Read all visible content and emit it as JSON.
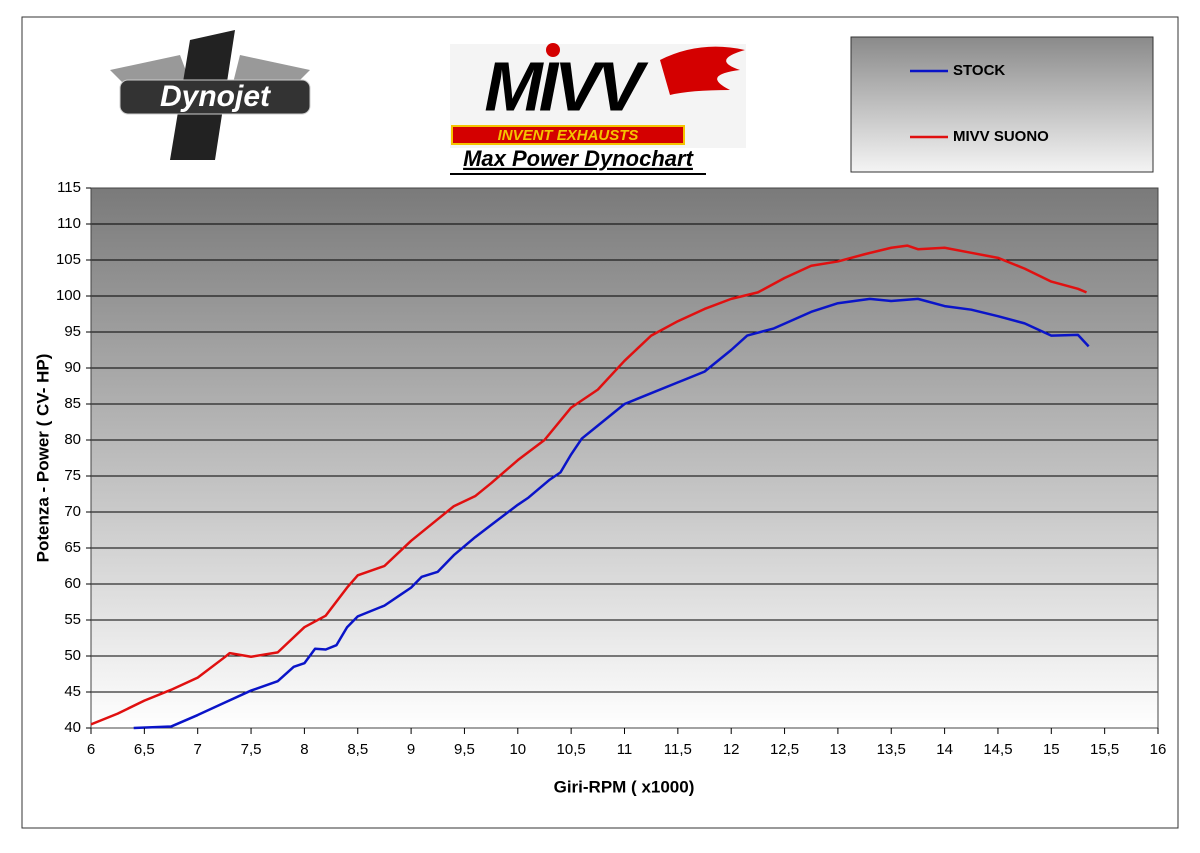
{
  "chart_data": {
    "type": "line",
    "title": "Max Power Dynochart",
    "brand_left": "Dynojet",
    "brand_right": "MIVV",
    "brand_tagline": "INVENT EXHAUSTS",
    "x_label": "Giri-RPM ( x1000)",
    "y_label": "Potenza - Power ( CV- HP)",
    "xlim": [
      6,
      16
    ],
    "ylim": [
      40,
      115
    ],
    "xticks": [
      6,
      {
        "value": 6.5,
        "label": "6,5"
      },
      7,
      {
        "value": 7.5,
        "label": "7,5"
      },
      8,
      {
        "value": 8.5,
        "label": "8,5"
      },
      9,
      {
        "value": 9.5,
        "label": "9,5"
      },
      10,
      {
        "value": 10.5,
        "label": "10,5"
      },
      11,
      {
        "value": 11.5,
        "label": "11,5"
      },
      12,
      {
        "value": 12.5,
        "label": "12,5"
      },
      13,
      {
        "value": 13.5,
        "label": "13,5"
      },
      14,
      {
        "value": 14.5,
        "label": "14,5"
      },
      15,
      {
        "value": 15.5,
        "label": "15,5"
      },
      16
    ],
    "yticks": [
      40,
      45,
      50,
      55,
      60,
      65,
      70,
      75,
      80,
      85,
      90,
      95,
      100,
      105,
      110,
      115
    ],
    "grid": true,
    "series": [
      {
        "name": "STOCK",
        "color": "#0a14c8",
        "x": [
          6.4,
          6.75,
          7.0,
          7.25,
          7.5,
          7.75,
          7.9,
          8.0,
          8.1,
          8.2,
          8.3,
          8.4,
          8.5,
          8.75,
          8.9,
          9.0,
          9.1,
          9.25,
          9.4,
          9.6,
          9.75,
          10.0,
          10.1,
          10.3,
          10.4,
          10.5,
          10.6,
          10.75,
          11.0,
          11.25,
          11.5,
          11.75,
          12.0,
          12.15,
          12.4,
          12.75,
          13.0,
          13.3,
          13.5,
          13.75,
          14.0,
          14.25,
          14.5,
          14.75,
          15.0,
          15.25,
          15.35
        ],
        "values": [
          40,
          40.2,
          41.8,
          43.5,
          45.2,
          46.5,
          48.5,
          49,
          51,
          50.9,
          51.5,
          54,
          55.5,
          57,
          58.5,
          59.5,
          61,
          61.7,
          64,
          66.5,
          68.2,
          71,
          72,
          74.5,
          75.5,
          78,
          80.2,
          82,
          85,
          86.5,
          88,
          89.5,
          92.5,
          94.5,
          95.5,
          97.8,
          99,
          99.6,
          99.3,
          99.6,
          98.6,
          98.1,
          97.2,
          96.2,
          94.5,
          94.6,
          93
        ]
      },
      {
        "name": "MIVV SUONO",
        "color": "#e01010",
        "x": [
          6.0,
          6.25,
          6.5,
          6.75,
          7.0,
          7.25,
          7.3,
          7.5,
          7.75,
          8.0,
          8.2,
          8.4,
          8.5,
          8.75,
          9.0,
          9.25,
          9.4,
          9.6,
          9.75,
          10.0,
          10.25,
          10.5,
          10.75,
          11.0,
          11.25,
          11.5,
          11.75,
          12.0,
          12.25,
          12.5,
          12.75,
          13.0,
          13.25,
          13.5,
          13.65,
          13.75,
          14.0,
          14.25,
          14.5,
          14.75,
          15.0,
          15.25,
          15.33
        ],
        "values": [
          40.5,
          42,
          43.8,
          45.3,
          47,
          49.8,
          50.4,
          49.9,
          50.5,
          54,
          55.6,
          59.5,
          61.2,
          62.5,
          66,
          69,
          70.8,
          72.2,
          74,
          77.2,
          80,
          84.5,
          87,
          91,
          94.5,
          96.5,
          98.2,
          99.6,
          100.5,
          102.5,
          104.2,
          104.8,
          105.8,
          106.7,
          107,
          106.5,
          106.7,
          106,
          105.3,
          103.8,
          102,
          101,
          100.5
        ]
      }
    ]
  }
}
